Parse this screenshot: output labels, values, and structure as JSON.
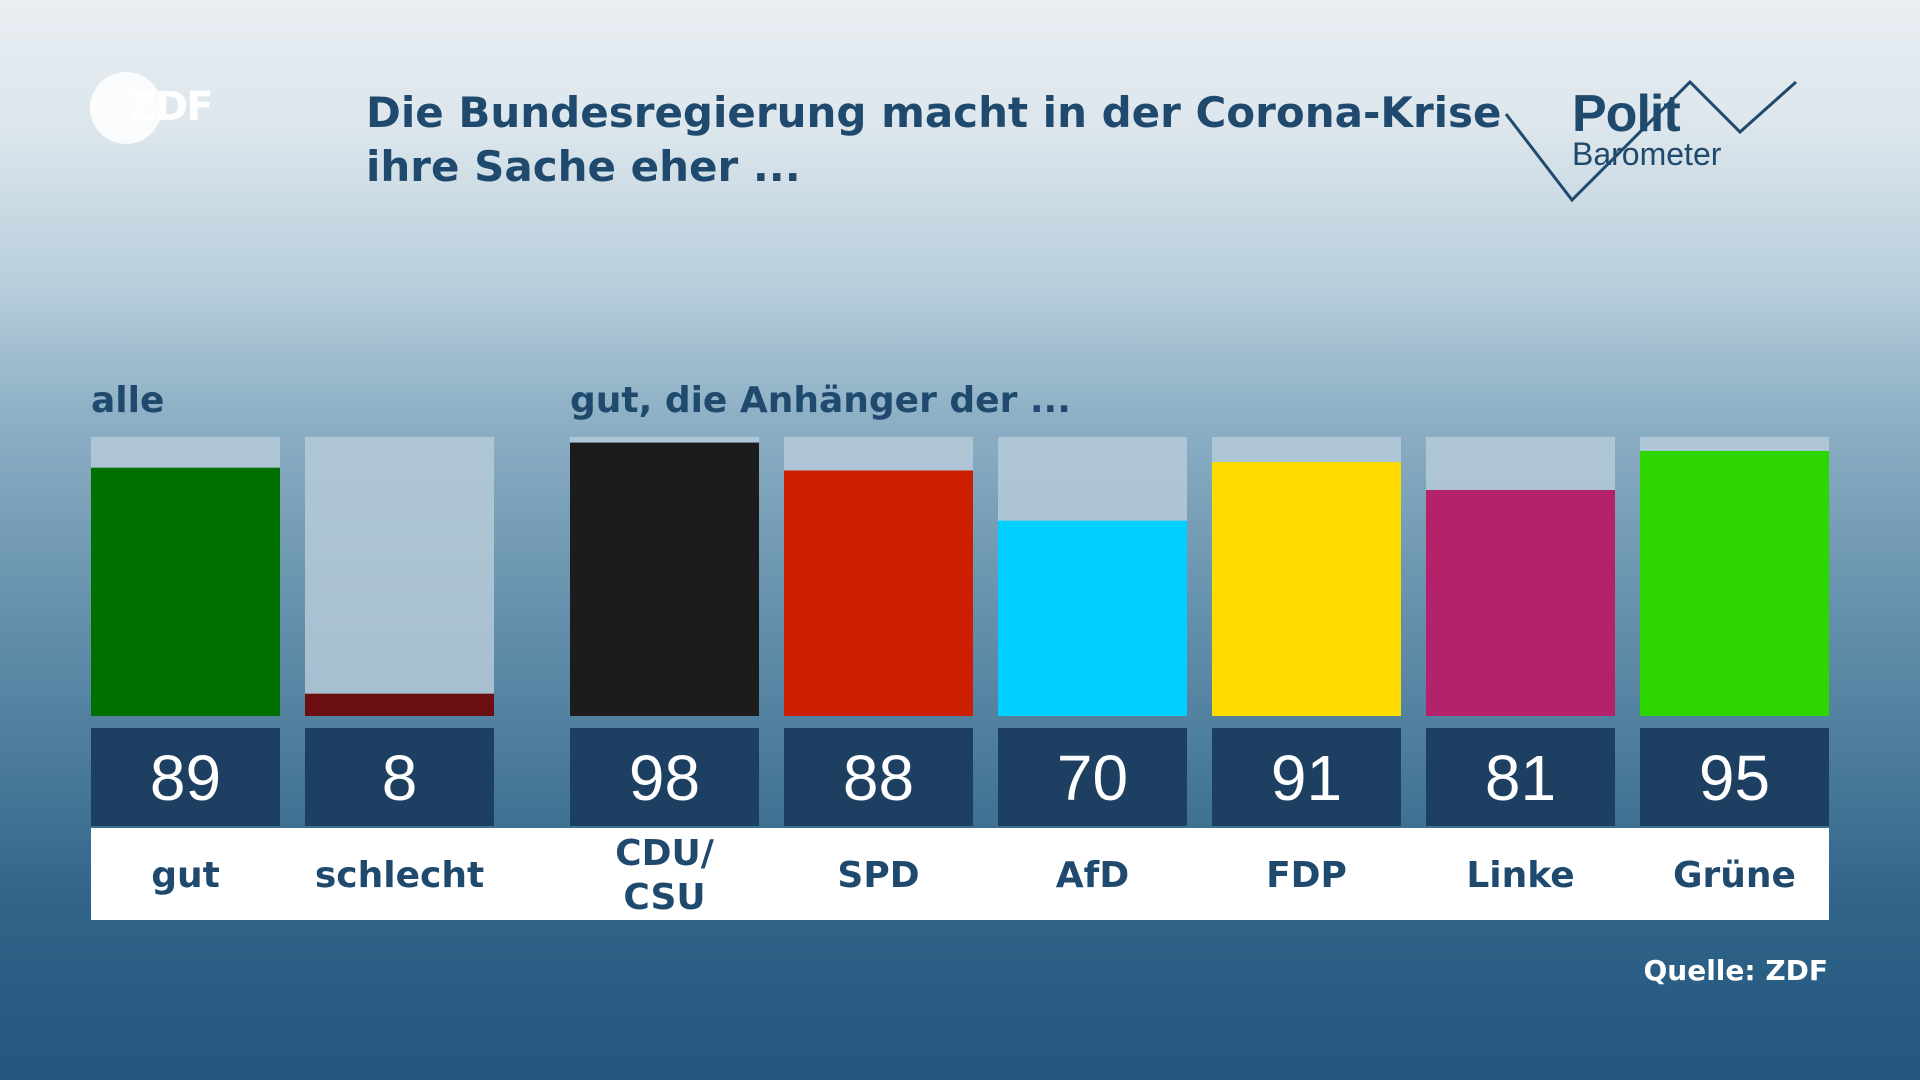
{
  "header": {
    "title_lines": [
      "Die Bundesregierung macht in der Corona-Krise",
      "ihre Sache eher ..."
    ],
    "logo_left": "ZDF",
    "logo_right": {
      "line1": "Polit",
      "line2": "Barometer"
    }
  },
  "source": "Quelle: ZDF",
  "colors": {
    "value_box": "#1d3f62",
    "bar_background": "#b5cad8",
    "gut": "#007000",
    "schlecht": "#6b0e10",
    "cdu_csu": "#1c1c1c",
    "spd": "#cc1e00",
    "afd": "#00cfff",
    "fdp": "#ffdc00",
    "linke": "#b3226a",
    "gruene": "#2ed600"
  },
  "chart_data": {
    "type": "bar",
    "ylim": [
      0,
      100
    ],
    "groups": [
      {
        "label": "alle",
        "categories": [
          "gut",
          "schlecht"
        ]
      },
      {
        "label": "gut, die Anhänger der ...",
        "categories": [
          "CDU/\nCSU",
          "SPD",
          "AfD",
          "FDP",
          "Linke",
          "Grüne"
        ]
      }
    ],
    "categories": [
      "gut",
      "schlecht",
      "CDU/\nCSU",
      "SPD",
      "AfD",
      "FDP",
      "Linke",
      "Grüne"
    ],
    "values": [
      89,
      8,
      98,
      88,
      70,
      91,
      81,
      95
    ],
    "value_labels": [
      "89",
      "8",
      "98",
      "88",
      "70",
      "91",
      "81",
      "95"
    ],
    "bar_colors": [
      "#007000",
      "#6b0e10",
      "#1c1c1c",
      "#cc1e00",
      "#00cfff",
      "#ffdc00",
      "#b3226a",
      "#2ed600"
    ]
  }
}
